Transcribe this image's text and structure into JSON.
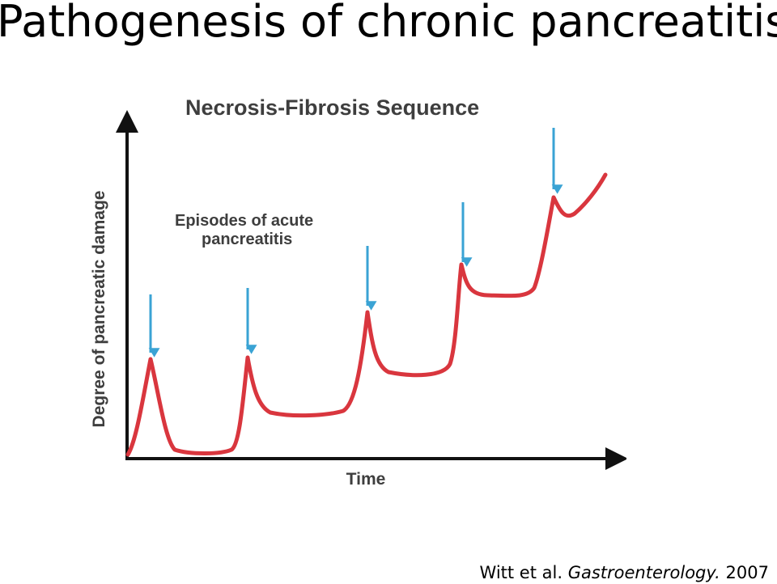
{
  "slide": {
    "title": "Pathogenesis of chronic pancreatitis",
    "citation_authors": "Witt et al.",
    "citation_journal": "Gastroenterology.",
    "citation_year": "2007"
  },
  "diagram": {
    "title": "Necrosis-Fibrosis Sequence",
    "annotation_line1": "Episodes of acute",
    "annotation_line2": "pancreatitis",
    "y_axis_label": "Degree of pancreatic damage",
    "x_axis_label": "Time",
    "curve_color": "#d9363e",
    "arrow_color": "#3aa3d4",
    "axis_color": "#111111",
    "episode_count": 5
  }
}
